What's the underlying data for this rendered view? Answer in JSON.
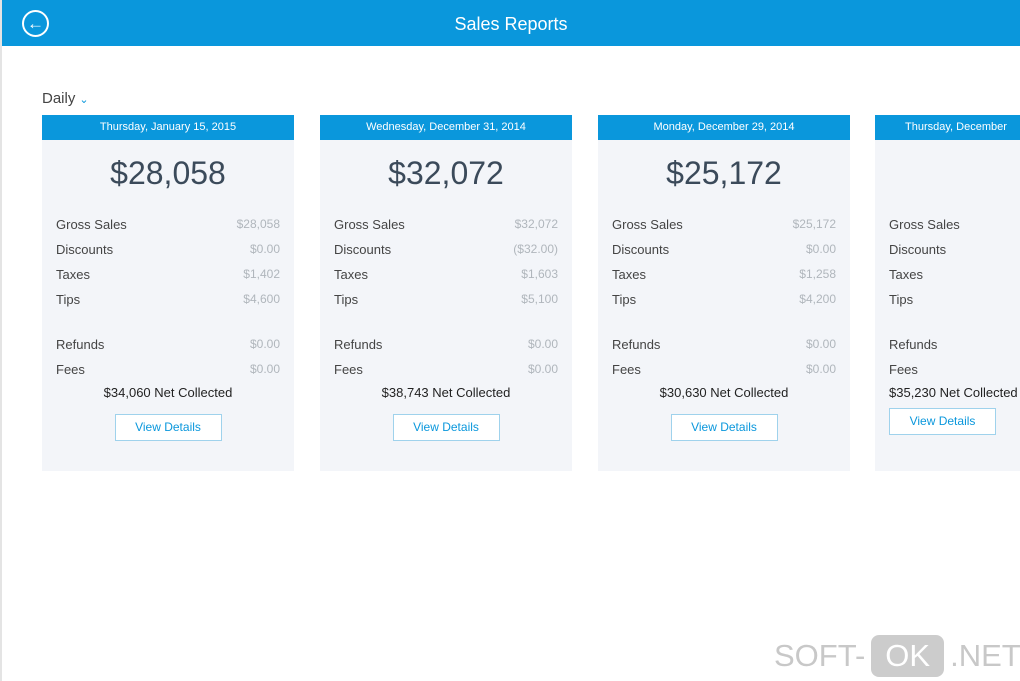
{
  "header": {
    "title": "Sales Reports",
    "back_icon": "back-arrow-circle-icon"
  },
  "period": {
    "selected": "Daily"
  },
  "labels": {
    "gross": "Gross Sales",
    "discounts": "Discounts",
    "taxes": "Taxes",
    "tips": "Tips",
    "refunds": "Refunds",
    "fees": "Fees",
    "net_suffix": "Net Collected",
    "view": "View Details"
  },
  "cards": [
    {
      "date": "Thursday, January 15, 2015",
      "total": "$28,058",
      "gross": "$28,058",
      "discounts": "$0.00",
      "taxes": "$1,402",
      "tips": "$4,600",
      "refunds": "$0.00",
      "fees": "$0.00",
      "net": "$34,060"
    },
    {
      "date": "Wednesday, December 31, 2014",
      "total": "$32,072",
      "gross": "$32,072",
      "discounts": "($32.00)",
      "taxes": "$1,603",
      "tips": "$5,100",
      "refunds": "$0.00",
      "fees": "$0.00",
      "net": "$38,743"
    },
    {
      "date": "Monday, December 29, 2014",
      "total": "$25,172",
      "gross": "$25,172",
      "discounts": "$0.00",
      "taxes": "$1,258",
      "tips": "$4,200",
      "refunds": "$0.00",
      "fees": "$0.00",
      "net": "$30,630"
    },
    {
      "date": "Thursday, December",
      "net": "$35,230"
    }
  ],
  "watermark": {
    "left": "SOFT-",
    "mid": "OK",
    "right": ".NET"
  },
  "colors": {
    "accent": "#0a97dc",
    "card_bg": "#f3f5f9"
  }
}
